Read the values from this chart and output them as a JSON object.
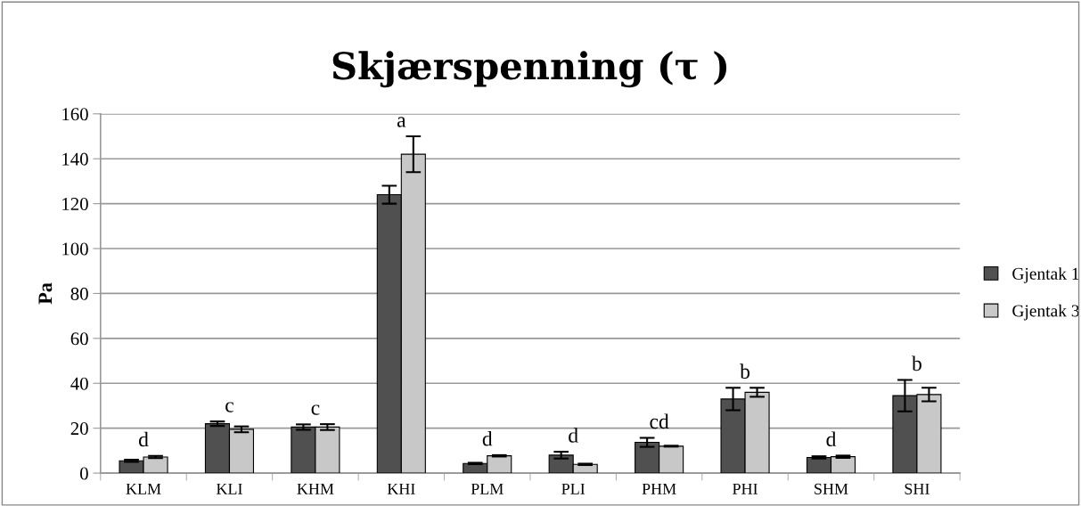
{
  "chart_data": {
    "type": "bar",
    "title": "Skjærspenning (τ )",
    "ylabel": "Pa",
    "categories": [
      "KLM",
      "KLI",
      "KHM",
      "KHI",
      "PLM",
      "PLI",
      "PHM",
      "PHI",
      "SHM",
      "SHI"
    ],
    "series": [
      {
        "name": "Gjentak 1",
        "color": "#505050",
        "values": [
          5.5,
          22,
          20.5,
          124,
          4.3,
          8,
          13.7,
          33,
          7,
          34.5
        ],
        "errors": [
          0.5,
          1,
          1.2,
          4,
          0.3,
          1.5,
          2,
          5,
          0.5,
          7
        ]
      },
      {
        "name": "Gjentak 3",
        "color": "#c8c8c8",
        "values": [
          7.2,
          19.5,
          20.5,
          142,
          7.7,
          3.9,
          12,
          36,
          7.3,
          35
        ],
        "errors": [
          0.5,
          1.3,
          1.3,
          8,
          0.3,
          0.3,
          0.2,
          2,
          0.5,
          3
        ]
      }
    ],
    "annotations": [
      "d",
      "c",
      "c",
      "a",
      "d",
      "d",
      "cd",
      "b",
      "d",
      "b"
    ],
    "ylim": [
      0,
      160
    ],
    "yticks": [
      0,
      20,
      40,
      60,
      80,
      100,
      120,
      140,
      160
    ],
    "grid": "y",
    "legend": "right"
  }
}
